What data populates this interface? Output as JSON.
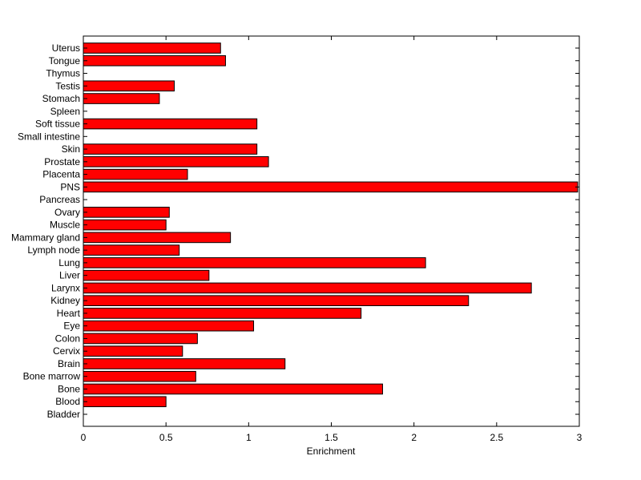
{
  "chart_data": {
    "type": "bar",
    "orientation": "horizontal",
    "title": "",
    "xlabel": "Enrichment",
    "ylabel": "",
    "xlim": [
      0,
      3
    ],
    "xticks": [
      0,
      0.5,
      1,
      1.5,
      2,
      2.5,
      3
    ],
    "xtick_labels": [
      "0",
      "0.5",
      "1",
      "1.5",
      "2",
      "2.5",
      "3"
    ],
    "grid": false,
    "legend": "none",
    "bar_color": "#ff0000",
    "bar_edge_color": "#000000",
    "categories": [
      "Bladder",
      "Blood",
      "Bone",
      "Bone marrow",
      "Brain",
      "Cervix",
      "Colon",
      "Eye",
      "Heart",
      "Kidney",
      "Larynx",
      "Liver",
      "Lung",
      "Lymph node",
      "Mammary gland",
      "Muscle",
      "Ovary",
      "Pancreas",
      "PNS",
      "Placenta",
      "Prostate",
      "Skin",
      "Small intestine",
      "Soft tissue",
      "Spleen",
      "Stomach",
      "Testis",
      "Thymus",
      "Tongue",
      "Uterus"
    ],
    "values": [
      0,
      0.5,
      1.81,
      0.68,
      1.22,
      0.6,
      0.69,
      1.03,
      1.68,
      2.33,
      2.71,
      0.76,
      2.07,
      0.58,
      0.89,
      0.5,
      0.52,
      0,
      2.99,
      0.63,
      1.12,
      1.05,
      0,
      1.05,
      0,
      0.46,
      0.55,
      0,
      0.86,
      0.83
    ]
  }
}
